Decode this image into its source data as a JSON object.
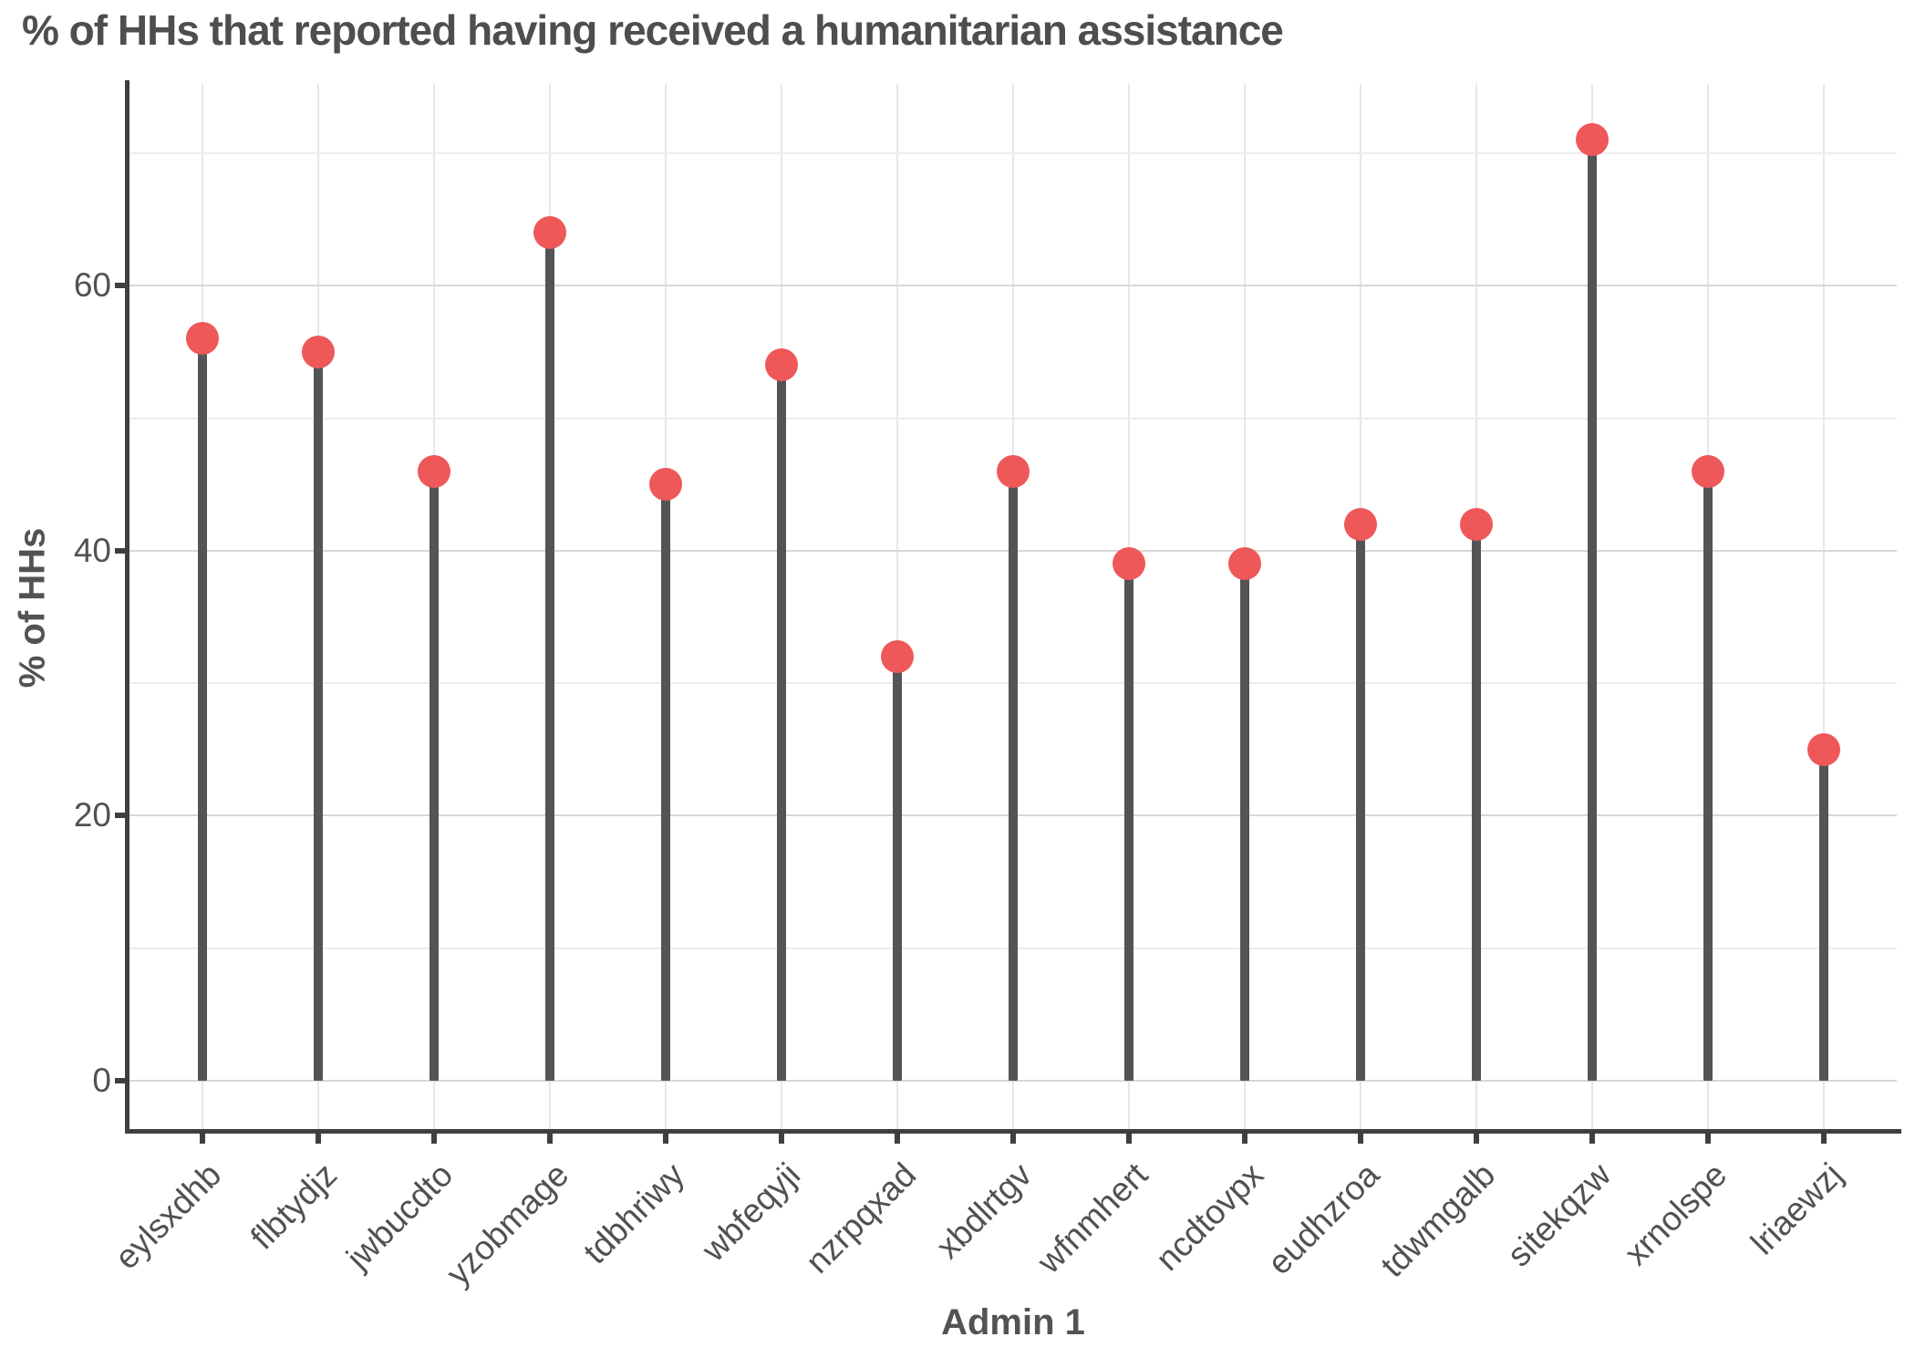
{
  "title": "% of HHs that reported having received a humanitarian assistance",
  "chart_data": {
    "type": "lollipop",
    "title": "% of HHs that reported having received a humanitarian assistance",
    "xlabel": "Admin 1",
    "ylabel": "% of HHs",
    "categories": [
      "eylsxdhb",
      "flbtydjz",
      "jwbucdto",
      "yzobmage",
      "tdbhriwy",
      "wbfeqyji",
      "nzrpqxad",
      "xbdlrtgv",
      "wfnmhert",
      "ncdtovpx",
      "eudhzroa",
      "tdwmgalb",
      "sitekqzw",
      "xrnolspe",
      "lriaewzj"
    ],
    "values": [
      56,
      55,
      46,
      64,
      45,
      54,
      32,
      46,
      39,
      39,
      42,
      42,
      71,
      46,
      25
    ],
    "ylim": [
      0,
      75
    ],
    "y_major_ticks": [
      0,
      20,
      40,
      60
    ],
    "y_minor_gridlines": [
      10,
      30,
      50,
      70
    ],
    "grid": "major-and-minor-horizontal, vertical-per-category",
    "legend": "none",
    "colors": {
      "dot": "#ee5859",
      "stem": "#545456",
      "axis": "#3f3f41",
      "title_text": "#4e4e50",
      "tick_text": "#515153",
      "grid_major": "#d7d7d7",
      "grid_minor": "#ececec"
    }
  }
}
